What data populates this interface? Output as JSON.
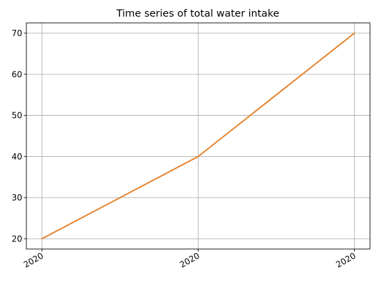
{
  "chart_data": {
    "type": "line",
    "title": "Time series of total water intake",
    "xlabel": "",
    "ylabel": "",
    "x": [
      "2020",
      "2020",
      "2020"
    ],
    "x_tick_labels": [
      "2020",
      "2020",
      "2020"
    ],
    "series": [
      {
        "values": [
          20,
          40,
          70
        ],
        "color": "#e5822d"
      }
    ],
    "y_ticks": [
      20,
      30,
      40,
      50,
      60,
      70
    ],
    "ylim": [
      17.5,
      72.5
    ],
    "grid": true,
    "legend": "none"
  }
}
